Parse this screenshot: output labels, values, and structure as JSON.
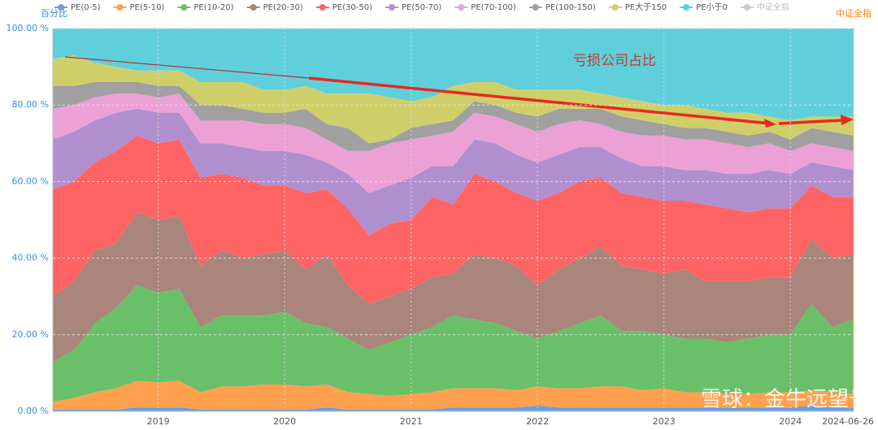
{
  "chart_data": {
    "type": "stacked_area",
    "y_label": "百分比",
    "y2_label": "中证全指",
    "annotation": "亏损公司占比",
    "watermark": "雪球：金牛远望号",
    "categories": [
      null,
      null,
      null,
      null,
      null,
      "2019",
      null,
      null,
      null,
      null,
      null,
      "2020",
      null,
      null,
      null,
      null,
      null,
      "2021",
      null,
      null,
      null,
      null,
      null,
      "2022",
      null,
      null,
      null,
      null,
      null,
      "2023",
      null,
      null,
      null,
      null,
      null,
      "2024",
      null,
      null,
      "2024-06-26"
    ],
    "ylim": [
      0,
      100
    ],
    "yticks": [
      {
        "value": 0,
        "label": "0.00 %"
      },
      {
        "value": 20,
        "label": "20.00 %"
      },
      {
        "value": 40,
        "label": "40.00 %"
      },
      {
        "value": 60,
        "label": "60.00 %"
      },
      {
        "value": 80,
        "label": "80.00 %"
      },
      {
        "value": 100,
        "label": "100.00 %"
      }
    ],
    "grid": true,
    "series": [
      {
        "name": "PE(0-5)",
        "color": "#6a9fe0",
        "values": [
          0.5,
          0.5,
          0.5,
          0.5,
          1,
          1,
          1,
          0.5,
          0.5,
          0.5,
          0.5,
          0.5,
          0.5,
          1,
          0.5,
          0.5,
          0.5,
          0.5,
          0.5,
          1,
          1,
          1,
          1,
          1.5,
          1,
          1,
          1,
          1,
          1,
          1,
          1,
          1,
          1,
          1,
          1,
          1,
          1.5,
          1,
          1
        ]
      },
      {
        "name": "PE(5-10)",
        "color": "#ffa04f",
        "values": [
          2,
          3,
          4.5,
          5.5,
          7,
          6.5,
          7,
          4.5,
          6,
          6,
          6.5,
          6.5,
          6,
          6,
          4.5,
          4,
          3.5,
          4,
          4.5,
          5,
          5,
          5,
          4.5,
          5,
          5,
          5,
          5.5,
          5.5,
          4.5,
          5,
          4,
          4,
          3.5,
          3.5,
          4,
          4,
          4,
          4,
          3.5
        ]
      },
      {
        "name": "PE(10-20)",
        "color": "#6abf69",
        "values": [
          10.5,
          12.5,
          18,
          21,
          25,
          23.5,
          24,
          17,
          18.5,
          18.5,
          18,
          19,
          16.5,
          15,
          14,
          11.5,
          14,
          15.5,
          17,
          19,
          18,
          17,
          15.5,
          12.5,
          15,
          17,
          18.5,
          14.5,
          15.5,
          14,
          14,
          14,
          13.5,
          14.5,
          15,
          15,
          22.5,
          17,
          19.5
        ]
      },
      {
        "name": "PE(20-30)",
        "color": "#a9857b",
        "values": [
          17,
          18,
          19,
          17,
          19,
          19,
          19,
          16,
          17,
          15,
          16,
          16,
          14,
          19,
          14,
          12,
          12,
          12,
          13,
          11,
          17,
          17,
          17,
          14,
          16,
          17,
          18,
          17,
          16,
          16,
          18,
          15,
          16,
          15,
          15,
          15,
          17,
          18,
          17
        ]
      },
      {
        "name": "PE(30-50)",
        "color": "#ff6464",
        "values": [
          28,
          26,
          23,
          24,
          20,
          20,
          20,
          23,
          20,
          21,
          18,
          17,
          20,
          17,
          20,
          18,
          19,
          18,
          21,
          18,
          21,
          20,
          19,
          22,
          20,
          20,
          18,
          19,
          19,
          19,
          18,
          20,
          19,
          18,
          18,
          18,
          14,
          16,
          15
        ]
      },
      {
        "name": "PE(50-70)",
        "color": "#b08fcf",
        "values": [
          13,
          13,
          11,
          10,
          7,
          8,
          7,
          9,
          8,
          8,
          9,
          9,
          10,
          7,
          9,
          11,
          10,
          11,
          8,
          10,
          9,
          10,
          10,
          10,
          10,
          9,
          8,
          9,
          8,
          9,
          8,
          9,
          9,
          10,
          10,
          9,
          6,
          8,
          7
        ]
      },
      {
        "name": "PE(70-100)",
        "color": "#eba0d6",
        "values": [
          8,
          7,
          6,
          5,
          4,
          4,
          5,
          6,
          6,
          7,
          7,
          7,
          7,
          6,
          6,
          11,
          11,
          10,
          8,
          9,
          7,
          7,
          8,
          8,
          8,
          7,
          6,
          7,
          8,
          8,
          8,
          8,
          8,
          7,
          7,
          6,
          5,
          5,
          5
        ]
      },
      {
        "name": "PE(100-150)",
        "color": "#a0a0a0",
        "values": [
          6,
          5,
          4,
          3,
          3,
          3,
          2,
          4,
          4,
          3,
          3,
          3,
          5,
          4,
          6,
          2,
          1,
          3,
          3,
          3,
          3,
          3,
          3,
          4,
          4,
          3,
          4,
          4,
          4,
          3,
          3,
          3,
          3,
          3,
          3,
          3,
          4,
          4,
          4
        ]
      },
      {
        "name": "PE大于150",
        "color": "#cfcf6a",
        "values": [
          7,
          8,
          5,
          4,
          3,
          4,
          4,
          6,
          6,
          7,
          6,
          6,
          6,
          8,
          9,
          13,
          11,
          7,
          7,
          9,
          5,
          6,
          6,
          7,
          5,
          5,
          4,
          5,
          5,
          5,
          6,
          5,
          5,
          6,
          4,
          5,
          3,
          4,
          5
        ]
      },
      {
        "name": "PE小于0",
        "color": "#5fcfdc",
        "values": [
          8,
          7,
          9,
          10,
          11,
          11,
          11,
          14,
          14,
          14,
          16,
          16,
          15,
          17,
          17,
          17,
          18,
          19,
          18,
          15,
          14,
          14,
          16,
          16,
          16,
          16,
          17,
          18,
          19,
          20,
          20,
          21,
          22,
          22,
          23,
          24,
          23,
          23,
          23
        ]
      },
      {
        "name": "中证全指",
        "color": "#cccccc"
      }
    ]
  }
}
